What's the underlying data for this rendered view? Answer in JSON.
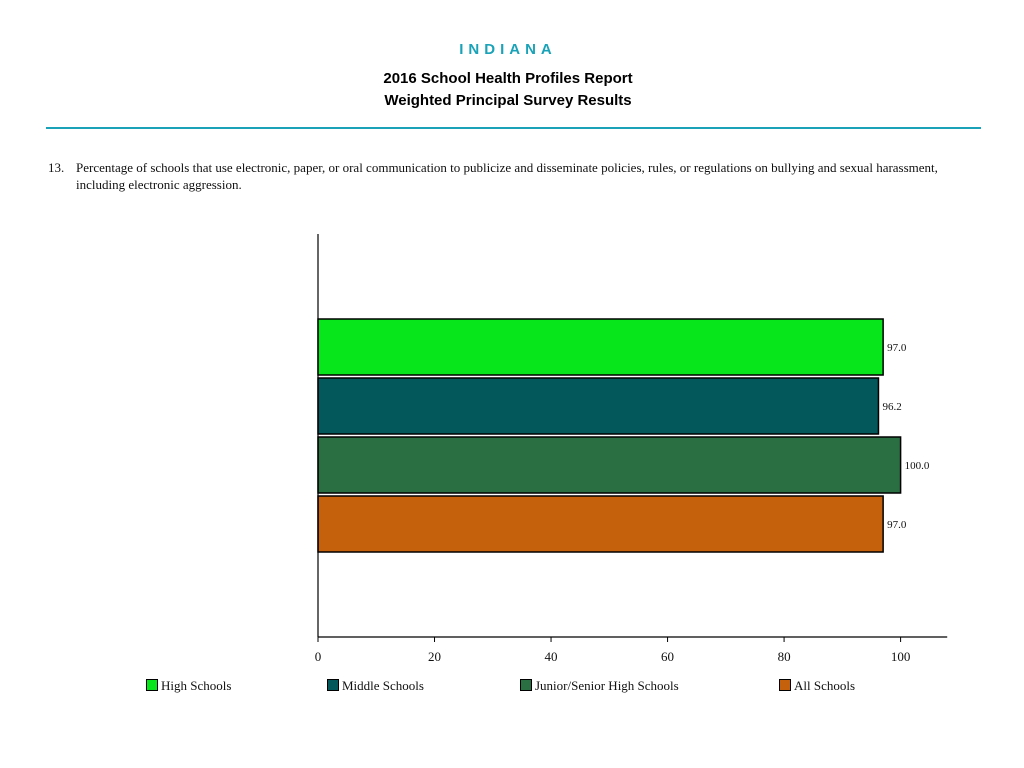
{
  "header": {
    "state": "INDIANA",
    "title": "2016 School Health Profiles Report",
    "subtitle": "Weighted Principal Survey Results"
  },
  "question": {
    "number": "13.",
    "text": "Percentage of schools that use electronic, paper, or oral communication to publicize and disseminate policies, rules, or regulations on bullying and sexual harassment, including electronic aggression."
  },
  "chart_data": {
    "type": "bar",
    "orientation": "horizontal",
    "series": [
      {
        "name": "High Schools",
        "value": 97.0,
        "label": "97.0",
        "color": "#06e61b"
      },
      {
        "name": "Middle Schools",
        "value": 96.2,
        "label": "96.2",
        "color": "#02585a"
      },
      {
        "name": "Junior/Senior High Schools",
        "value": 100.0,
        "label": "100.0",
        "color": "#2a6f41"
      },
      {
        "name": "All Schools",
        "value": 97.0,
        "label": "97.0",
        "color": "#c5600c"
      }
    ],
    "xlim": [
      0,
      108
    ],
    "xticks": [
      0,
      20,
      40,
      60,
      80,
      100
    ],
    "grid": false,
    "legend_position": "bottom"
  }
}
